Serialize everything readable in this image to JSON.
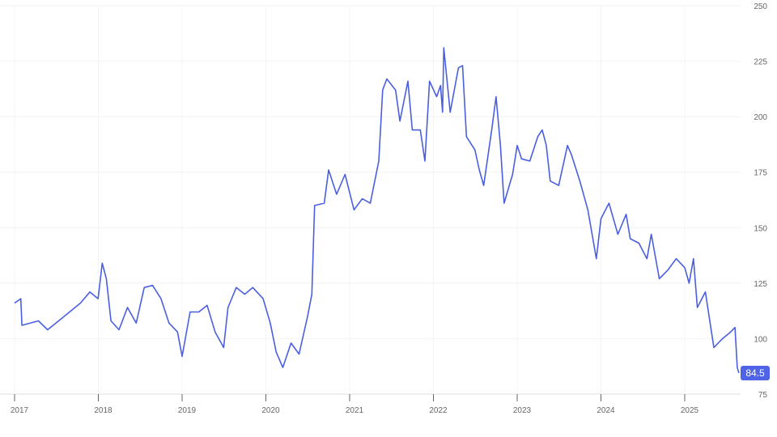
{
  "chart_data": {
    "type": "line",
    "title": "",
    "xlabel": "",
    "ylabel": "",
    "ylim": [
      75,
      250
    ],
    "y_ticks": [
      "75",
      "100",
      "125",
      "150",
      "175",
      "200",
      "225",
      "250"
    ],
    "x_ticks": [
      "2017",
      "2018",
      "2019",
      "2020",
      "2021",
      "2022",
      "2023",
      "2024",
      "2025"
    ],
    "y_axis_position": "right",
    "grid": true,
    "line_color": "#4a5fe0",
    "last_value_label": "84.5",
    "series": [
      {
        "points": [
          [
            "2017-01-01",
            116
          ],
          [
            "2017-01-28",
            118
          ],
          [
            "2017-02-02",
            106
          ],
          [
            "2017-04-15",
            108
          ],
          [
            "2017-05-25",
            104
          ],
          [
            "2017-08-05",
            110
          ],
          [
            "2017-10-15",
            116
          ],
          [
            "2017-11-25",
            121
          ],
          [
            "2017-12-31",
            118
          ],
          [
            "2018-01-18",
            134
          ],
          [
            "2018-02-05",
            127
          ],
          [
            "2018-02-25",
            108
          ],
          [
            "2018-04-01",
            104
          ],
          [
            "2018-05-08",
            114
          ],
          [
            "2018-06-15",
            107
          ],
          [
            "2018-07-20",
            123
          ],
          [
            "2018-08-25",
            124
          ],
          [
            "2018-10-01",
            118
          ],
          [
            "2018-11-05",
            107
          ],
          [
            "2018-12-12",
            103
          ],
          [
            "2019-01-01",
            92
          ],
          [
            "2019-02-05",
            112
          ],
          [
            "2019-03-15",
            112
          ],
          [
            "2019-04-20",
            115
          ],
          [
            "2019-05-25",
            103
          ],
          [
            "2019-07-01",
            96
          ],
          [
            "2019-07-20",
            114
          ],
          [
            "2019-08-25",
            123
          ],
          [
            "2019-10-01",
            120
          ],
          [
            "2019-11-05",
            123
          ],
          [
            "2019-12-20",
            118
          ],
          [
            "2020-01-20",
            107
          ],
          [
            "2020-02-15",
            94
          ],
          [
            "2020-03-15",
            87
          ],
          [
            "2020-04-20",
            98
          ],
          [
            "2020-05-25",
            93
          ],
          [
            "2020-07-01",
            110
          ],
          [
            "2020-07-20",
            120
          ],
          [
            "2020-08-01",
            160
          ],
          [
            "2020-09-12",
            161
          ],
          [
            "2020-10-01",
            176
          ],
          [
            "2020-11-05",
            165
          ],
          [
            "2020-12-12",
            174
          ],
          [
            "2021-01-20",
            158
          ],
          [
            "2021-02-25",
            163
          ],
          [
            "2021-04-01",
            161
          ],
          [
            "2021-05-08",
            180
          ],
          [
            "2021-05-25",
            212
          ],
          [
            "2021-06-12",
            217
          ],
          [
            "2021-07-20",
            212
          ],
          [
            "2021-08-08",
            198
          ],
          [
            "2021-09-12",
            216
          ],
          [
            "2021-10-01",
            194
          ],
          [
            "2021-11-05",
            194
          ],
          [
            "2021-11-25",
            180
          ],
          [
            "2021-12-15",
            216
          ],
          [
            "2022-01-15",
            209
          ],
          [
            "2022-02-01",
            214
          ],
          [
            "2022-02-10",
            202
          ],
          [
            "2022-02-15",
            231
          ],
          [
            "2022-03-15",
            202
          ],
          [
            "2022-04-20",
            222
          ],
          [
            "2022-05-08",
            223
          ],
          [
            "2022-05-25",
            191
          ],
          [
            "2022-07-01",
            185
          ],
          [
            "2022-07-20",
            176
          ],
          [
            "2022-08-08",
            169
          ],
          [
            "2022-09-12",
            194
          ],
          [
            "2022-10-01",
            209
          ],
          [
            "2022-10-20",
            187
          ],
          [
            "2022-11-05",
            161
          ],
          [
            "2022-12-12",
            174
          ],
          [
            "2023-01-01",
            187
          ],
          [
            "2023-01-20",
            181
          ],
          [
            "2023-02-25",
            180
          ],
          [
            "2023-04-01",
            191
          ],
          [
            "2023-04-20",
            194
          ],
          [
            "2023-05-08",
            187
          ],
          [
            "2023-05-25",
            171
          ],
          [
            "2023-07-01",
            169
          ],
          [
            "2023-08-08",
            187
          ],
          [
            "2023-08-25",
            183
          ],
          [
            "2023-10-01",
            171
          ],
          [
            "2023-11-05",
            158
          ],
          [
            "2023-12-12",
            136
          ],
          [
            "2024-01-01",
            154
          ],
          [
            "2024-02-05",
            161
          ],
          [
            "2024-03-15",
            147
          ],
          [
            "2024-04-20",
            156
          ],
          [
            "2024-05-08",
            145
          ],
          [
            "2024-06-15",
            143
          ],
          [
            "2024-07-20",
            136
          ],
          [
            "2024-08-08",
            147
          ],
          [
            "2024-09-12",
            127
          ],
          [
            "2024-10-20",
            131
          ],
          [
            "2024-11-25",
            136
          ],
          [
            "2025-01-01",
            132
          ],
          [
            "2025-01-20",
            125
          ],
          [
            "2025-02-08",
            136
          ],
          [
            "2025-02-25",
            114
          ],
          [
            "2025-04-01",
            121
          ],
          [
            "2025-05-08",
            96
          ],
          [
            "2025-06-15",
            100
          ],
          [
            "2025-07-20",
            103
          ],
          [
            "2025-08-08",
            105
          ],
          [
            "2025-08-18",
            87
          ],
          [
            "2025-08-25",
            84.5
          ]
        ]
      }
    ]
  }
}
